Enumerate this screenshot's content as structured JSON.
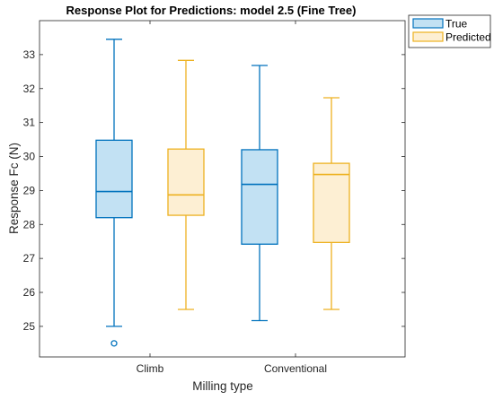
{
  "chart_data": {
    "type": "boxplot",
    "title": "Response Plot for Predictions: model 2.5 (Fine Tree)",
    "xlabel": "Milling type",
    "ylabel": "Response Fc (N)",
    "categories": [
      "Climb",
      "Conventional"
    ],
    "ylim": [
      24.1,
      34.0
    ],
    "yticks": [
      25,
      26,
      27,
      28,
      29,
      30,
      31,
      32,
      33
    ],
    "grid": false,
    "legend_position": "outside-top-right",
    "series": [
      {
        "name": "True",
        "color": "#0072BD",
        "fill": "#C2E1F3",
        "boxes": [
          {
            "category": "Climb",
            "min": 25.0,
            "q1": 28.2,
            "median": 28.97,
            "q3": 30.48,
            "max": 33.45,
            "outliers": [
              24.5
            ]
          },
          {
            "category": "Conventional",
            "min": 25.17,
            "q1": 27.42,
            "median": 29.18,
            "q3": 30.2,
            "max": 32.68,
            "outliers": []
          }
        ]
      },
      {
        "name": "Predicted",
        "color": "#EDB120",
        "fill": "#FDEFD3",
        "boxes": [
          {
            "category": "Climb",
            "min": 25.5,
            "q1": 28.27,
            "median": 28.87,
            "q3": 30.22,
            "max": 32.83,
            "outliers": []
          },
          {
            "category": "Conventional",
            "min": 25.5,
            "q1": 27.47,
            "median": 29.47,
            "q3": 29.8,
            "max": 31.73,
            "outliers": []
          }
        ]
      }
    ]
  }
}
